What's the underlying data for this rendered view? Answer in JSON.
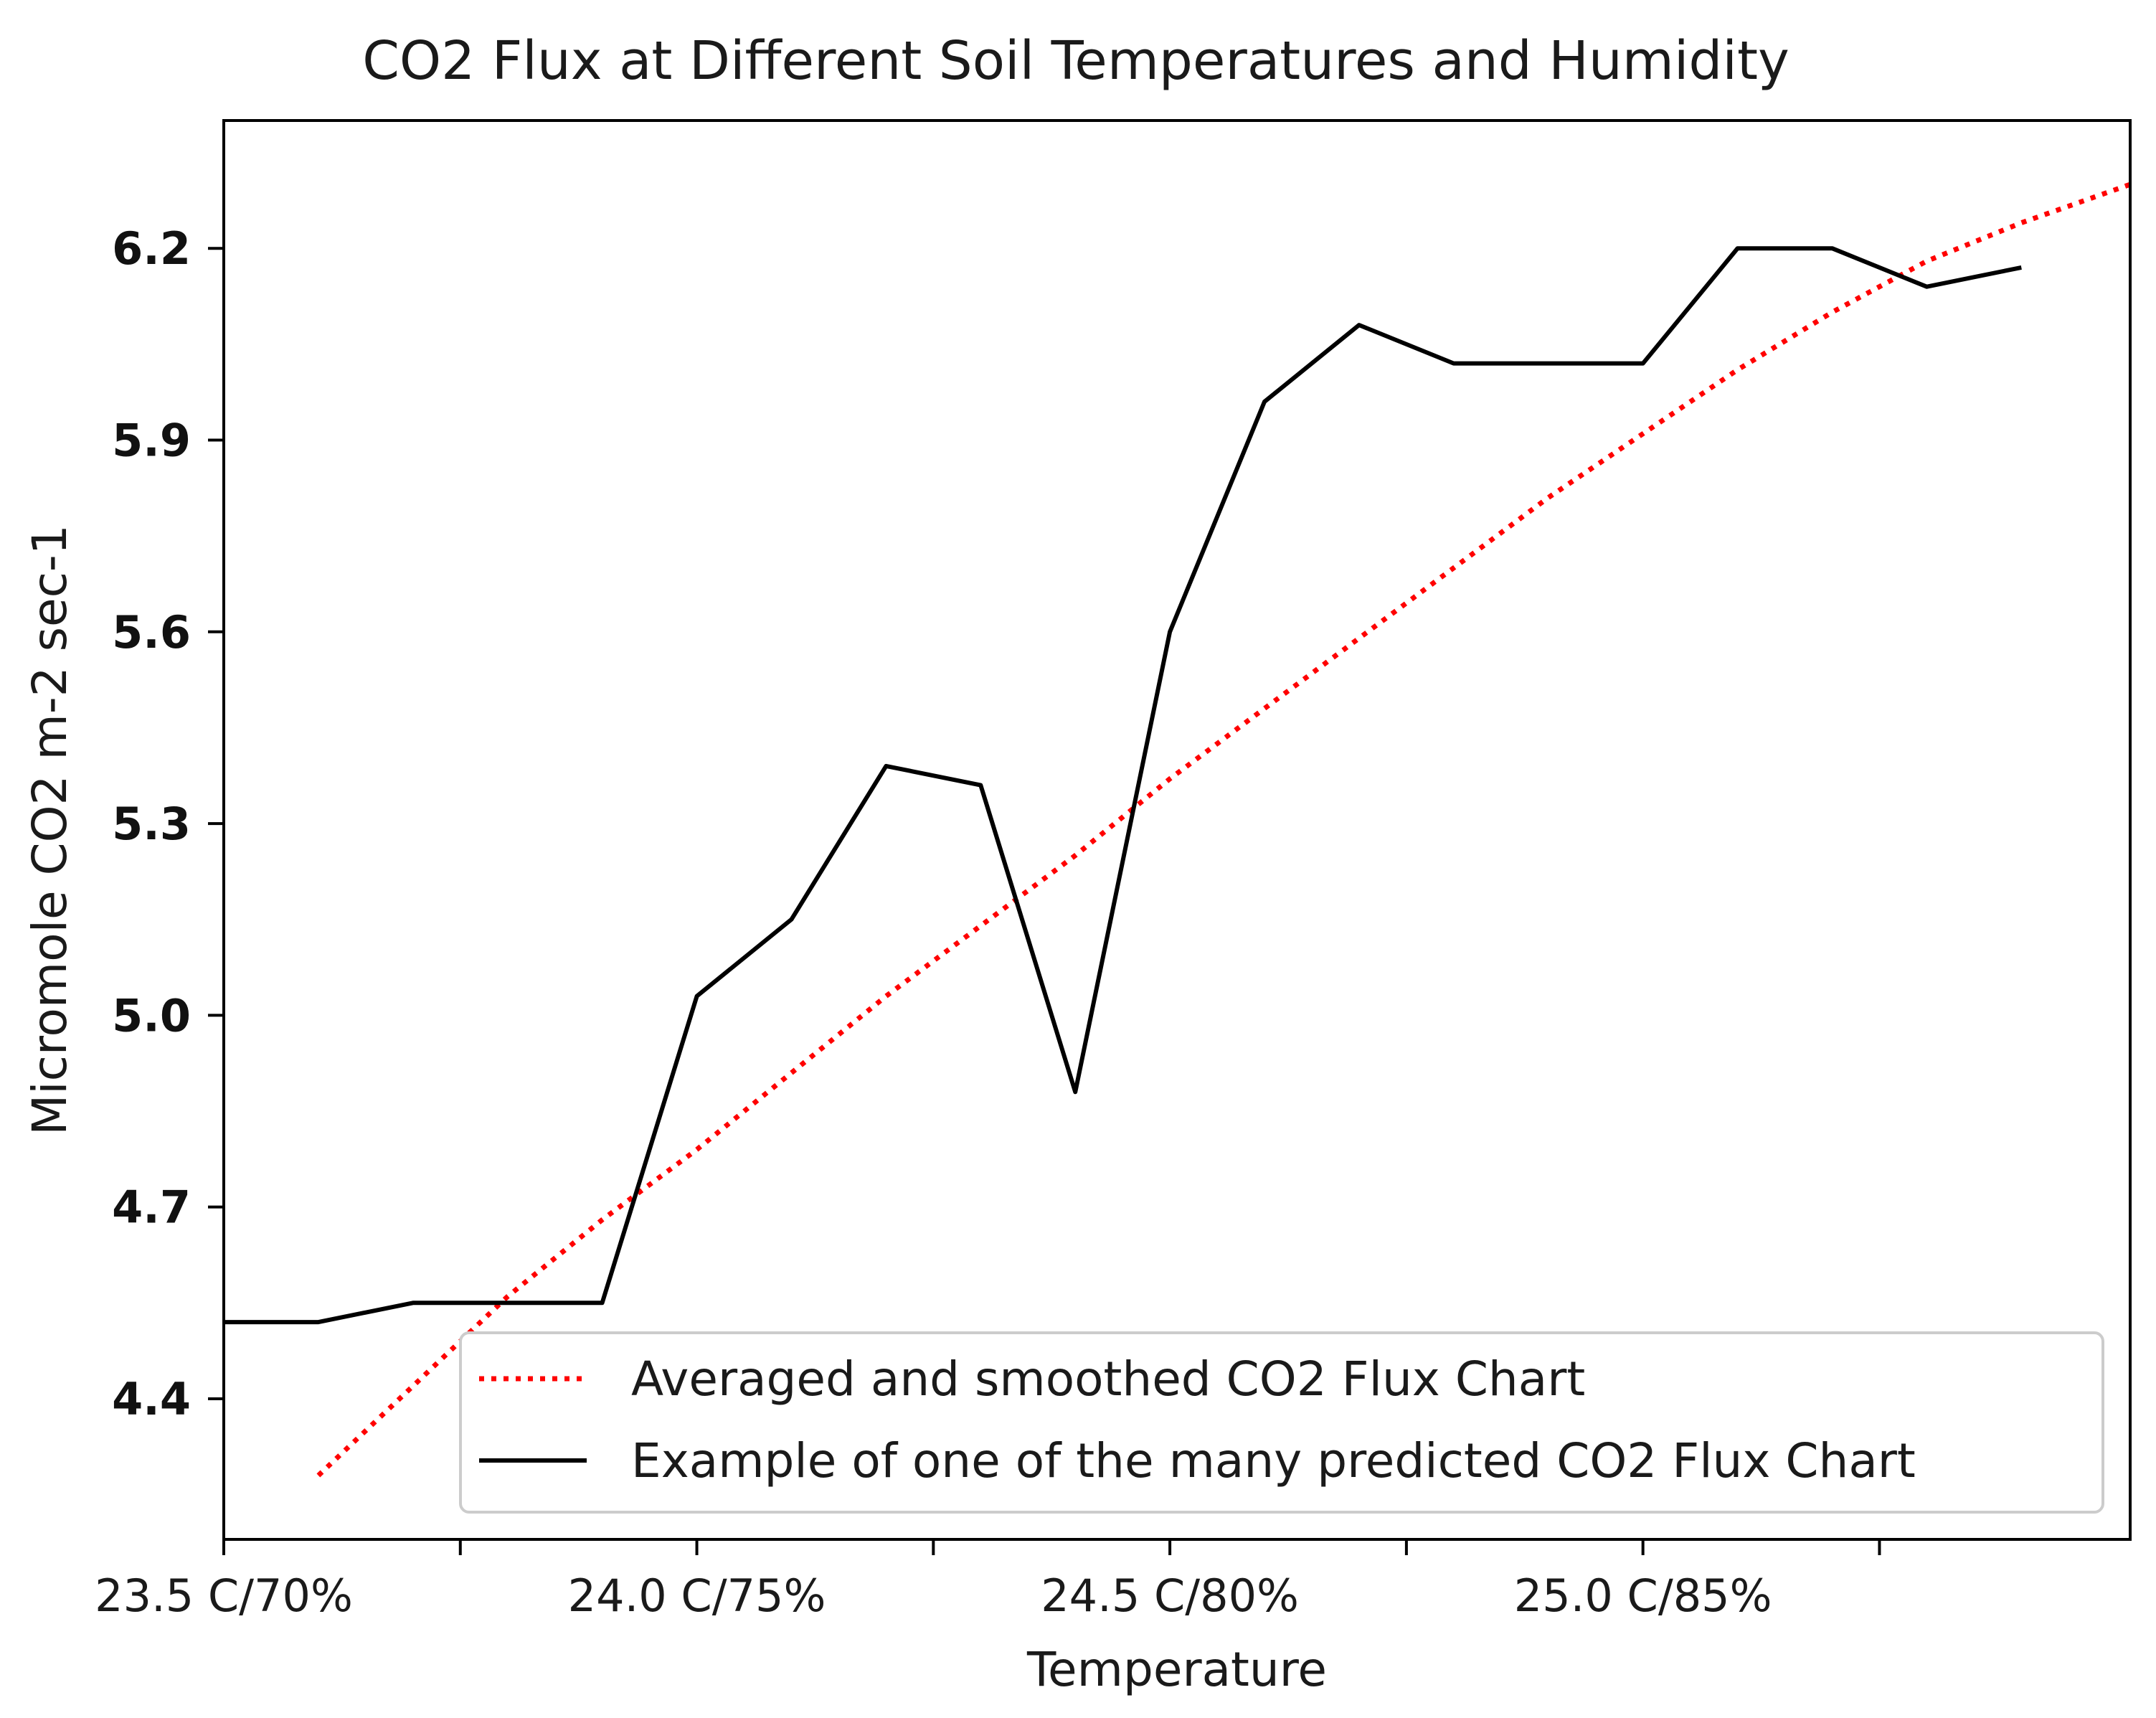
{
  "chart_data": {
    "type": "line",
    "title": "CO2 Flux at Different Soil Temperatures and Humidity",
    "xlabel": "Temperature",
    "ylabel": "Micromole CO2 m-2 sec-1",
    "x_tick_labels": [
      {
        "x": 0,
        "label": "23.5 C/70%"
      },
      {
        "x": 5,
        "label": "24.0 C/75%"
      },
      {
        "x": 10,
        "label": "24.5 C/80%"
      },
      {
        "x": 15,
        "label": "25.0 C/85%"
      }
    ],
    "x_minor_ticks": [
      2.5,
      7.5,
      12.5,
      17.5
    ],
    "xlim": [
      0,
      20.15
    ],
    "y_ticks": [
      4.4,
      4.7,
      5.0,
      5.3,
      5.6,
      5.9,
      6.2
    ],
    "y_tick_labels": [
      "4.4",
      "4.7",
      "5.0",
      "5.3",
      "5.6",
      "5.9",
      "6.2"
    ],
    "ylim": [
      4.18,
      6.4
    ],
    "legend_position": "lower-right",
    "series": [
      {
        "name": "Averaged and smoothed CO2 Flux Chart",
        "color": "#ff0000",
        "style": "dotted",
        "x": [
          1,
          2,
          3,
          4,
          5,
          6,
          7,
          8,
          9,
          10,
          11,
          12,
          13,
          14,
          15,
          16,
          17,
          18,
          19,
          20.15
        ],
        "y": [
          4.28,
          4.42,
          4.56,
          4.68,
          4.79,
          4.91,
          5.03,
          5.14,
          5.25,
          5.37,
          5.48,
          5.59,
          5.7,
          5.81,
          5.91,
          6.01,
          6.1,
          6.18,
          6.24,
          6.3
        ]
      },
      {
        "name": "Example of one of the many predicted CO2 Flux Chart",
        "color": "#000000",
        "style": "solid",
        "x": [
          0,
          1,
          2,
          3,
          4,
          5,
          6,
          7,
          8,
          9,
          10,
          11,
          12,
          13,
          14,
          15,
          16,
          17,
          18,
          19
        ],
        "y": [
          4.52,
          4.52,
          4.55,
          4.55,
          4.55,
          5.03,
          5.15,
          5.39,
          5.36,
          4.88,
          5.6,
          5.96,
          6.08,
          6.02,
          6.02,
          6.02,
          6.2,
          6.2,
          6.14,
          6.17
        ]
      }
    ]
  }
}
